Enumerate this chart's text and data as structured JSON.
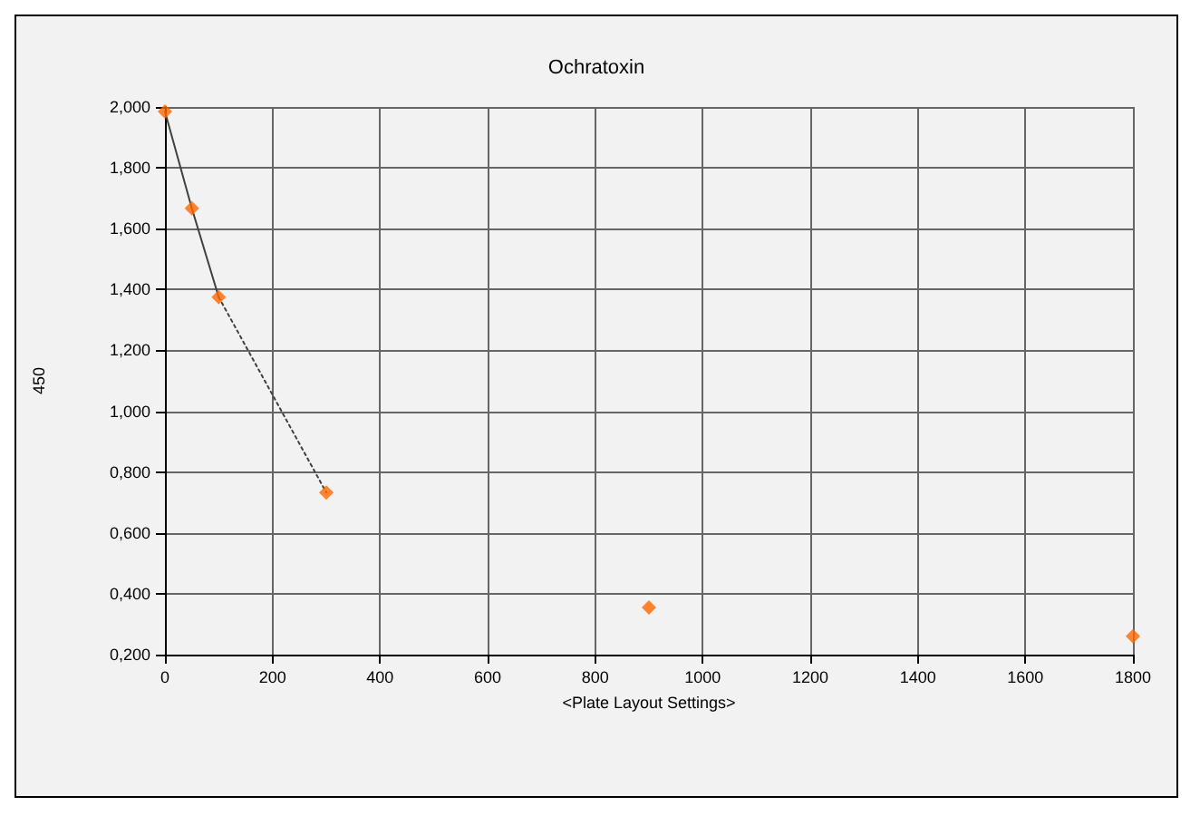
{
  "chart_data": {
    "type": "scatter",
    "title": "Ochratoxin",
    "xlabel": "<Plate Layout Settings>",
    "ylabel": "450",
    "xlim": [
      0,
      1800
    ],
    "xticks": [
      0,
      200,
      400,
      600,
      800,
      1000,
      1200,
      1400,
      1600,
      1800
    ],
    "ylim": [
      0.2,
      2.0
    ],
    "yticks": [
      {
        "value": 0.2,
        "label": "0,200"
      },
      {
        "value": 0.4,
        "label": "0,400"
      },
      {
        "value": 0.6,
        "label": "0,600"
      },
      {
        "value": 0.8,
        "label": "0,800"
      },
      {
        "value": 1.0,
        "label": "1,000"
      },
      {
        "value": 1.2,
        "label": "1,200"
      },
      {
        "value": 1.4,
        "label": "1,400"
      },
      {
        "value": 1.6,
        "label": "1,600"
      },
      {
        "value": 1.8,
        "label": "1,800"
      },
      {
        "value": 2.0,
        "label": "2,000"
      }
    ],
    "grid": true,
    "series": [
      {
        "type": "line",
        "color": "#404040",
        "line_style": "solid",
        "marker": "none",
        "x": [
          0,
          50,
          100
        ],
        "values": [
          1.985,
          1.667,
          1.375
        ]
      },
      {
        "type": "line",
        "color": "#404040",
        "line_style": "dotted",
        "marker": "none",
        "x": [
          100,
          300
        ],
        "values": [
          1.375,
          0.733
        ]
      },
      {
        "color": "#ff6600",
        "marker": "diamond",
        "x": [
          0,
          50,
          100,
          300,
          900,
          1800
        ],
        "values": [
          1.985,
          1.667,
          1.375,
          0.733,
          0.355,
          0.26
        ]
      }
    ]
  }
}
